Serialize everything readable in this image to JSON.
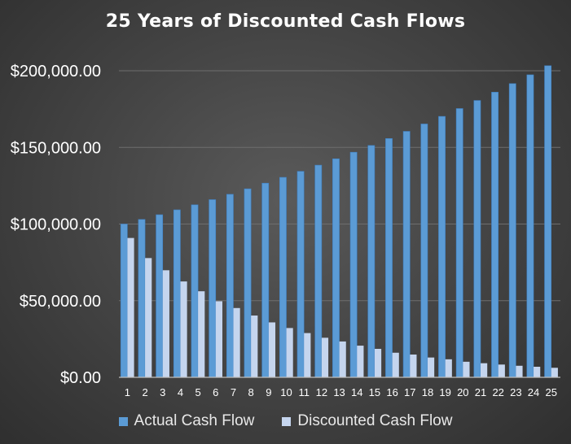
{
  "colors": {
    "actual": "#5b9bd5",
    "discounted": "#c5d5ee",
    "gridline": "#6e6e6e",
    "axis": "#bfbfbf",
    "text": "#ffffff"
  },
  "chart_data": {
    "type": "bar",
    "title": "25 Years of Discounted Cash Flows",
    "xlabel": "",
    "ylabel": "",
    "ylim": [
      0,
      200000
    ],
    "yticks": [
      {
        "value": 0,
        "label": "$0.00"
      },
      {
        "value": 50000,
        "label": "$50,000.00"
      },
      {
        "value": 100000,
        "label": "$100,000.00"
      },
      {
        "value": 150000,
        "label": "$150,000.00"
      },
      {
        "value": 200000,
        "label": "$200,000.00"
      }
    ],
    "grid": true,
    "legend_position": "bottom",
    "categories": [
      "1",
      "2",
      "3",
      "4",
      "5",
      "6",
      "7",
      "8",
      "9",
      "10",
      "11",
      "12",
      "13",
      "14",
      "15",
      "16",
      "17",
      "18",
      "19",
      "20",
      "21",
      "22",
      "23",
      "24",
      "25"
    ],
    "series": [
      {
        "name": "Actual Cash Flow",
        "values": [
          100000,
          103000,
          106090,
          109273,
          112551,
          115927,
          119405,
          122987,
          126677,
          130477,
          134392,
          138423,
          142576,
          146853,
          151259,
          155797,
          160471,
          165285,
          170243,
          175351,
          180611,
          186029,
          191610,
          197359,
          203279
        ]
      },
      {
        "name": "Discounted Cash Flow",
        "values": [
          90909,
          77800,
          69850,
          62540,
          56140,
          49630,
          45200,
          40310,
          35830,
          32160,
          28870,
          25810,
          23390,
          20660,
          18570,
          16040,
          14860,
          12920,
          11760,
          10160,
          9200,
          8330,
          7540,
          6890,
          6210
        ]
      }
    ]
  }
}
